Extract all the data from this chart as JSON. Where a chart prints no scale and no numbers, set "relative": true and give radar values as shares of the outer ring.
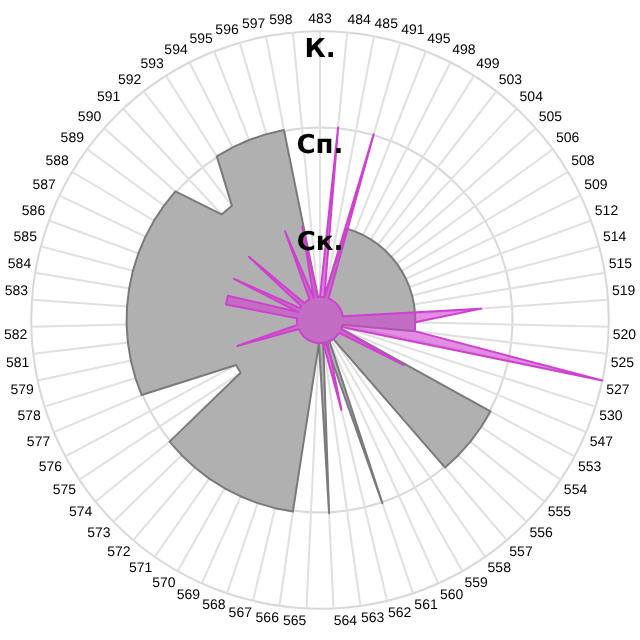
{
  "chart_data": {
    "type": "radar",
    "relative": true,
    "legend": false,
    "categories": [
      "483",
      "484",
      "485",
      "491",
      "495",
      "498",
      "499",
      "503",
      "504",
      "505",
      "506",
      "508",
      "509",
      "512",
      "514",
      "515",
      "519",
      "520",
      "525",
      "527",
      "530",
      "547",
      "553",
      "554",
      "555",
      "556",
      "557",
      "558",
      "559",
      "560",
      "561",
      "562",
      "563",
      "564",
      "565",
      "566",
      "567",
      "568",
      "569",
      "570",
      "571",
      "572",
      "573",
      "574",
      "575",
      "576",
      "577",
      "578",
      "579",
      "581",
      "582",
      "583",
      "584",
      "585",
      "586",
      "587",
      "588",
      "589",
      "590",
      "591",
      "592",
      "593",
      "594",
      "595",
      "596",
      "597",
      "598"
    ],
    "series": [
      {
        "color": "#b0b0b0",
        "values": [
          0.08,
          0.08,
          0.08,
          0.33,
          0.33,
          0.33,
          0.33,
          0.33,
          0.33,
          0.33,
          0.33,
          0.33,
          0.33,
          0.33,
          0.33,
          0.33,
          0.33,
          0.33,
          0.33,
          0.08,
          0.08,
          0.08,
          0.67,
          0.67,
          0.67,
          0.67,
          0.67,
          0.08,
          0.08,
          0.08,
          0.67,
          0.08,
          0.08,
          0.67,
          0.08,
          0.67,
          0.67,
          0.67,
          0.67,
          0.67,
          0.67,
          0.67,
          0.67,
          0.67,
          0.33,
          0.33,
          0.67,
          0.67,
          0.67,
          0.67,
          0.67,
          0.67,
          0.67,
          0.67,
          0.67,
          0.67,
          0.67,
          0.67,
          0.67,
          0.5,
          0.5,
          0.67,
          0.67,
          0.67,
          0.67,
          0.67,
          0.08
        ]
      },
      {
        "color": "#d040d0",
        "values": [
          0.08,
          0.67,
          0.08,
          0.67,
          0.08,
          0.08,
          0.08,
          0.08,
          0.08,
          0.08,
          0.08,
          0.08,
          0.08,
          0.08,
          0.08,
          0.08,
          0.56,
          0.33,
          0.33,
          1,
          0.08,
          0.08,
          0.33,
          0.08,
          0.08,
          0.08,
          0.08,
          0.08,
          0.08,
          0.08,
          0.08,
          0.32,
          0.08,
          0.08,
          0.08,
          0.08,
          0.08,
          0.08,
          0.08,
          0.08,
          0.08,
          0.08,
          0.08,
          0.08,
          0.08,
          0.08,
          0.08,
          0.3,
          0.08,
          0.08,
          0.08,
          0.08,
          0.33,
          0.33,
          0.08,
          0.33,
          0.08,
          0.08,
          0.33,
          0.08,
          0.08,
          0.08,
          0.08,
          0.33,
          0.08,
          0.33,
          0.08
        ]
      }
    ],
    "annotations": [
      "Ск.",
      "Сп.",
      "К."
    ]
  }
}
